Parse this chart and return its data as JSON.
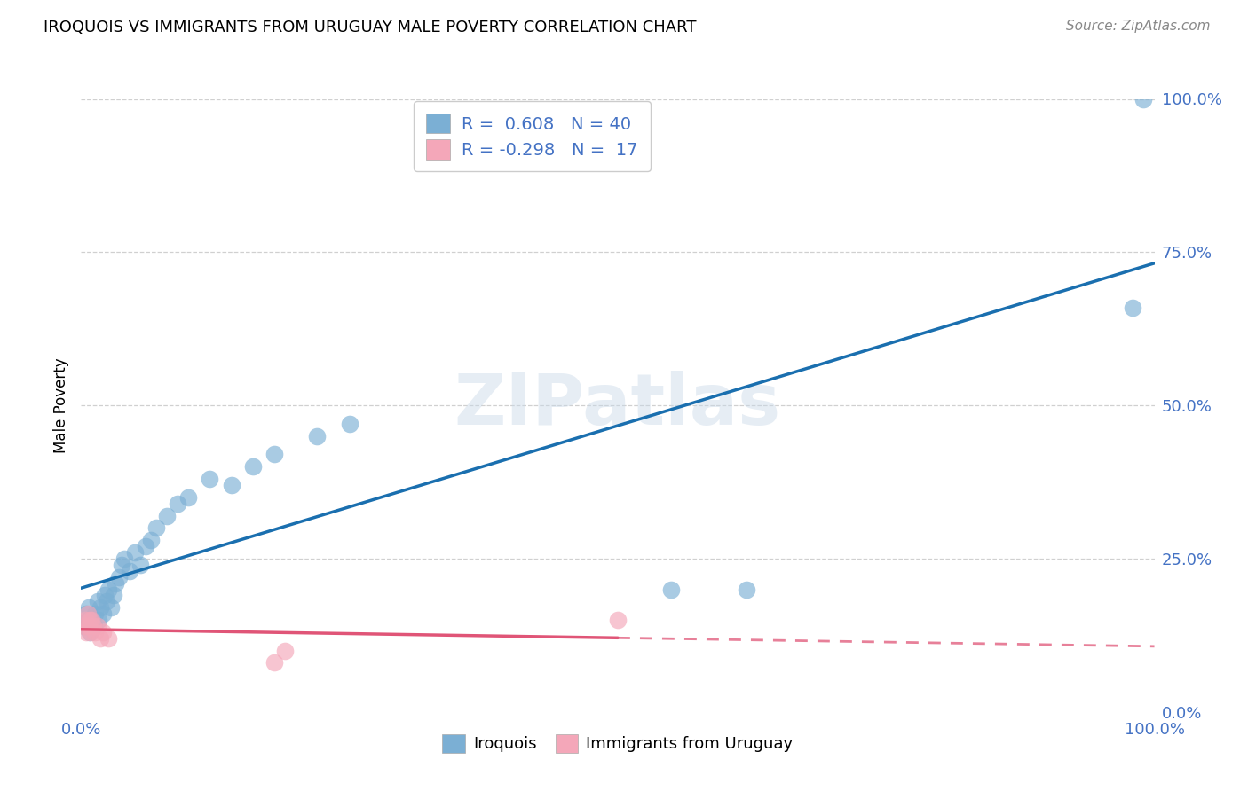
{
  "title": "IROQUOIS VS IMMIGRANTS FROM URUGUAY MALE POVERTY CORRELATION CHART",
  "source": "Source: ZipAtlas.com",
  "ylabel": "Male Poverty",
  "xlim": [
    0,
    1.0
  ],
  "ylim": [
    0,
    1.0
  ],
  "watermark": "ZIPatlas",
  "iroquois_color": "#7bafd4",
  "immigrants_color": "#f4a7b9",
  "iroquois_line_color": "#1a6faf",
  "immigrants_line_color": "#e05577",
  "iroquois_R": 0.608,
  "iroquois_N": 40,
  "immigrants_R": -0.298,
  "immigrants_N": 17,
  "iroquois_x": [
    0.003,
    0.005,
    0.006,
    0.007,
    0.008,
    0.01,
    0.012,
    0.013,
    0.015,
    0.016,
    0.018,
    0.02,
    0.022,
    0.024,
    0.025,
    0.028,
    0.03,
    0.032,
    0.035,
    0.038,
    0.04,
    0.045,
    0.05,
    0.055,
    0.06,
    0.065,
    0.07,
    0.08,
    0.09,
    0.1,
    0.12,
    0.14,
    0.16,
    0.18,
    0.22,
    0.25,
    0.55,
    0.62,
    0.98,
    0.99
  ],
  "iroquois_y": [
    0.14,
    0.16,
    0.15,
    0.17,
    0.13,
    0.15,
    0.14,
    0.16,
    0.18,
    0.15,
    0.17,
    0.16,
    0.19,
    0.18,
    0.2,
    0.17,
    0.19,
    0.21,
    0.22,
    0.24,
    0.25,
    0.23,
    0.26,
    0.24,
    0.27,
    0.28,
    0.3,
    0.32,
    0.34,
    0.35,
    0.38,
    0.37,
    0.4,
    0.42,
    0.45,
    0.47,
    0.2,
    0.2,
    0.66,
    1.0
  ],
  "immigrants_x": [
    0.003,
    0.004,
    0.005,
    0.006,
    0.007,
    0.008,
    0.009,
    0.01,
    0.011,
    0.013,
    0.015,
    0.018,
    0.02,
    0.025,
    0.18,
    0.19,
    0.5
  ],
  "immigrants_y": [
    0.14,
    0.15,
    0.13,
    0.16,
    0.14,
    0.15,
    0.13,
    0.15,
    0.14,
    0.13,
    0.14,
    0.12,
    0.13,
    0.12,
    0.08,
    0.1,
    0.15
  ],
  "legend_text_color": "#4472c4",
  "background_color": "#ffffff",
  "grid_color": "#d0d0d0"
}
